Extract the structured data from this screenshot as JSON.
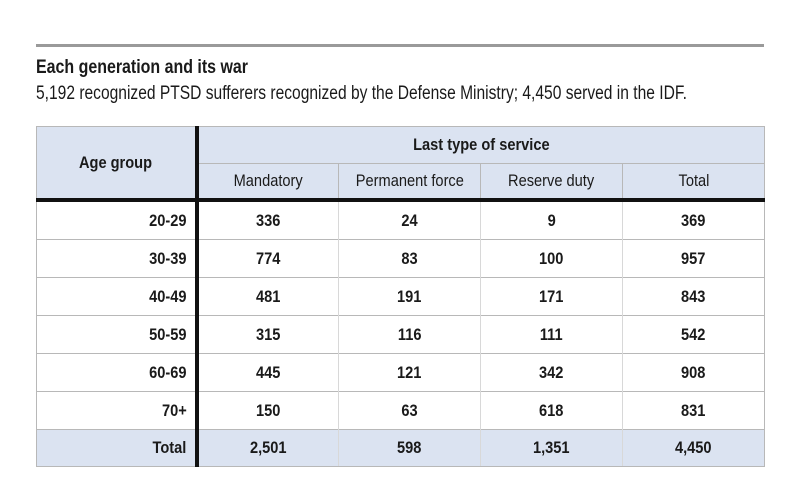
{
  "title": "Each generation and its war",
  "subtitle": "5,192 recognized PTSD sufferers recognized by the Defense Ministry; 4,450 served in the IDF.",
  "chart_data": {
    "type": "table",
    "row_header_label": "Age group",
    "column_group_label": "Last type of service",
    "columns": [
      "Mandatory",
      "Permanent force",
      "Reserve duty",
      "Total"
    ],
    "rows": [
      {
        "label": "20-29",
        "values": [
          "336",
          "24",
          "9",
          "369"
        ]
      },
      {
        "label": "30-39",
        "values": [
          "774",
          "83",
          "100",
          "957"
        ]
      },
      {
        "label": "40-49",
        "values": [
          "481",
          "191",
          "171",
          "843"
        ]
      },
      {
        "label": "50-59",
        "values": [
          "315",
          "116",
          "111",
          "542"
        ]
      },
      {
        "label": "60-69",
        "values": [
          "445",
          "121",
          "342",
          "908"
        ]
      },
      {
        "label": "70+",
        "values": [
          "150",
          "63",
          "618",
          "831"
        ]
      }
    ],
    "total_row": {
      "label": "Total",
      "values": [
        "2,501",
        "598",
        "1,351",
        "4,450"
      ]
    },
    "colors": {
      "header_background": "#dbe3f1",
      "divider": "#111111",
      "top_rule": "#9a9a9a"
    }
  }
}
